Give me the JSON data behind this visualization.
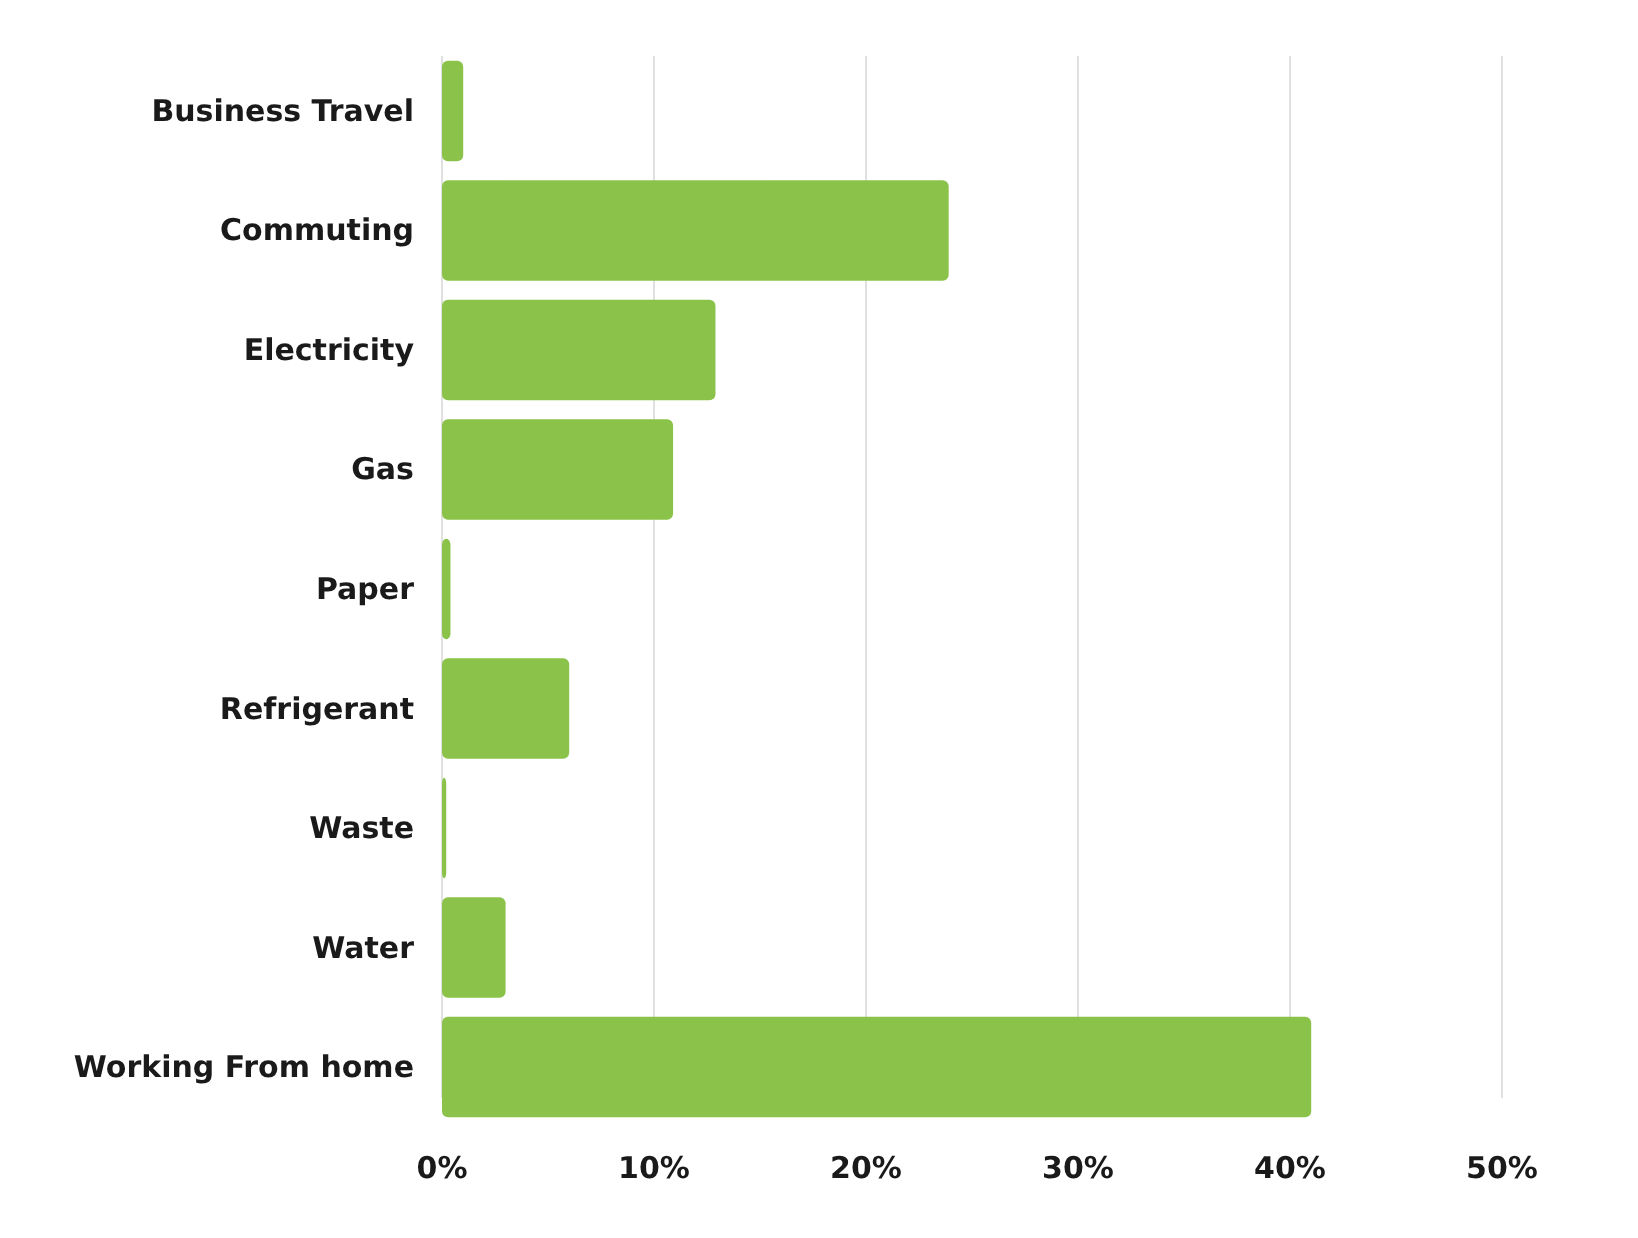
{
  "chart_data": {
    "type": "bar",
    "orientation": "horizontal",
    "categories": [
      "Business Travel",
      "Commuting",
      "Electricity",
      "Gas",
      "Paper",
      "Refrigerant",
      "Waste",
      "Water",
      "Working From home"
    ],
    "values": [
      1.0,
      23.9,
      12.9,
      10.9,
      0.4,
      6.0,
      0.2,
      3.0,
      41.0
    ],
    "color": "#8bc34a",
    "xlim": [
      0,
      50
    ],
    "xticks": [
      {
        "value": 0,
        "label": "0%"
      },
      {
        "value": 10,
        "label": "10%"
      },
      {
        "value": 20,
        "label": "20%"
      },
      {
        "value": 30,
        "label": "30%"
      },
      {
        "value": 40,
        "label": "40%"
      },
      {
        "value": 50,
        "label": "50%"
      }
    ],
    "grid": "x"
  }
}
